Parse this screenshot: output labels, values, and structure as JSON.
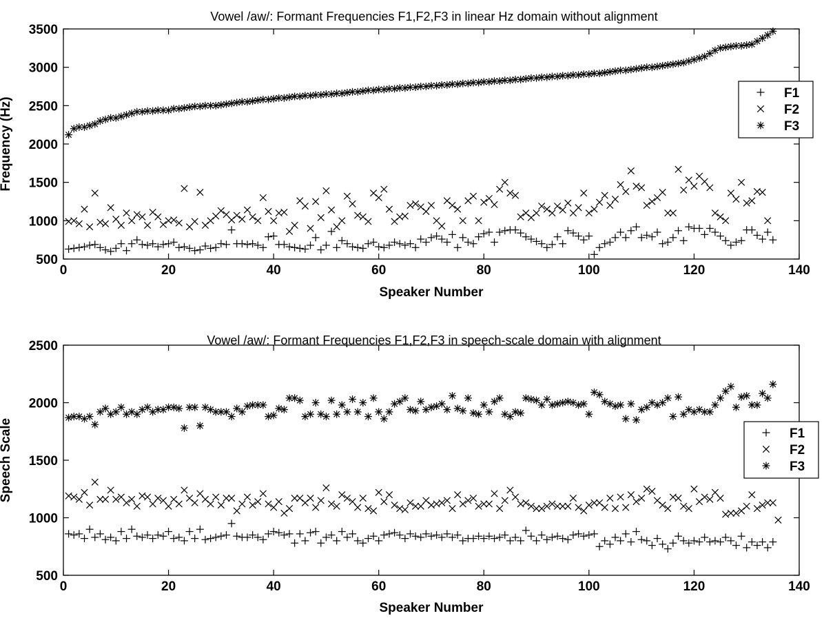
{
  "chart_data": [
    {
      "type": "scatter",
      "title": "Vowel /aw/: Formant Frequencies  F1,F2,F3 in linear Hz domain without alignment",
      "xlabel": "Speaker Number",
      "ylabel": "Frequency (Hz)",
      "xlim": [
        0,
        140
      ],
      "ylim": [
        500,
        3500
      ],
      "xticks": [
        0,
        20,
        40,
        60,
        80,
        100,
        120,
        140
      ],
      "yticks": [
        500,
        1000,
        1500,
        2000,
        2500,
        3000,
        3500
      ],
      "grid": false,
      "legend_position": "right",
      "series": [
        {
          "name": "F1",
          "marker": "plus",
          "values": [
            630,
            640,
            650,
            660,
            680,
            690,
            650,
            620,
            600,
            640,
            700,
            610,
            700,
            750,
            690,
            680,
            700,
            660,
            690,
            700,
            720,
            650,
            660,
            640,
            610,
            620,
            670,
            640,
            650,
            700,
            690,
            880,
            700,
            700,
            690,
            700,
            680,
            650,
            790,
            800,
            690,
            690,
            660,
            650,
            640,
            630,
            680,
            780,
            620,
            680,
            860,
            650,
            740,
            700,
            660,
            650,
            640,
            700,
            720,
            660,
            650,
            680,
            720,
            700,
            680,
            700,
            650,
            760,
            720,
            780,
            800,
            760,
            720,
            820,
            650,
            780,
            720,
            700,
            790,
            830,
            850,
            720,
            850,
            870,
            880,
            880,
            840,
            790,
            760,
            730,
            700,
            650,
            690,
            790,
            700,
            870,
            840,
            800,
            750,
            800,
            560,
            650,
            700,
            720,
            780,
            850,
            780,
            870,
            920,
            780,
            810,
            790,
            850,
            700,
            720,
            780,
            870,
            740,
            920,
            900,
            900,
            820,
            900,
            850,
            800,
            740,
            680,
            720,
            740,
            880,
            880,
            810,
            760,
            850,
            750
          ]
        },
        {
          "name": "F2",
          "marker": "x",
          "values": [
            990,
            1000,
            960,
            1150,
            920,
            1360,
            980,
            960,
            1170,
            1020,
            940,
            1100,
            1000,
            1080,
            1050,
            940,
            1110,
            1050,
            950,
            1000,
            1010,
            970,
            1420,
            920,
            990,
            1370,
            940,
            1000,
            1060,
            1130,
            1080,
            1010,
            1070,
            1020,
            1140,
            1050,
            1000,
            1300,
            1120,
            1000,
            1100,
            1110,
            860,
            940,
            1260,
            1190,
            900,
            1250,
            1040,
            1390,
            1140,
            920,
            1000,
            1320,
            1220,
            1070,
            1050,
            990,
            1360,
            1300,
            1410,
            1150,
            990,
            1050,
            1060,
            1200,
            1220,
            1180,
            1120,
            1200,
            1000,
            930,
            1260,
            1200,
            1150,
            1000,
            1260,
            1320,
            1000,
            1240,
            1290,
            1210,
            1410,
            1500,
            1360,
            1330,
            1050,
            1100,
            1040,
            1100,
            1190,
            1150,
            1100,
            1190,
            1140,
            1230,
            1100,
            1170,
            1360,
            1100,
            1150,
            1240,
            1330,
            1200,
            1280,
            1470,
            1380,
            1650,
            1450,
            1430,
            1200,
            1250,
            1300,
            1370,
            1100,
            1100,
            1670,
            1400,
            1530,
            1450,
            1580,
            1510,
            1430,
            1100,
            1050,
            1000,
            1360,
            1280,
            1500,
            1230,
            1260,
            1380,
            1370,
            1000
          ]
        },
        {
          "name": "F3",
          "marker": "star",
          "values": [
            2120,
            2200,
            2220,
            2220,
            2240,
            2260,
            2300,
            2320,
            2340,
            2340,
            2360,
            2380,
            2400,
            2420,
            2420,
            2430,
            2430,
            2440,
            2440,
            2440,
            2460,
            2460,
            2470,
            2480,
            2490,
            2490,
            2500,
            2500,
            2500,
            2510,
            2520,
            2530,
            2540,
            2550,
            2550,
            2560,
            2570,
            2580,
            2580,
            2590,
            2600,
            2600,
            2610,
            2620,
            2620,
            2630,
            2630,
            2640,
            2640,
            2650,
            2650,
            2660,
            2660,
            2670,
            2680,
            2680,
            2690,
            2700,
            2700,
            2710,
            2710,
            2720,
            2720,
            2730,
            2730,
            2740,
            2740,
            2750,
            2750,
            2760,
            2760,
            2770,
            2770,
            2780,
            2780,
            2790,
            2790,
            2800,
            2800,
            2810,
            2810,
            2820,
            2820,
            2830,
            2830,
            2840,
            2840,
            2850,
            2860,
            2860,
            2870,
            2870,
            2880,
            2880,
            2890,
            2890,
            2900,
            2900,
            2910,
            2910,
            2920,
            2920,
            2930,
            2940,
            2950,
            2960,
            2960,
            2970,
            2980,
            2990,
            3000,
            3000,
            3010,
            3020,
            3030,
            3040,
            3050,
            3060,
            3080,
            3100,
            3120,
            3140,
            3180,
            3220,
            3250,
            3260,
            3270,
            3280,
            3280,
            3290,
            3300,
            3340,
            3380,
            3420,
            3470
          ]
        }
      ]
    },
    {
      "type": "scatter",
      "title": "Vowel /aw/: Formant Frequencies F1,F2,F3 in speech-scale domain with alignment",
      "xlabel": "Speaker Number",
      "ylabel": "Speech Scale",
      "xlim": [
        0,
        140
      ],
      "ylim": [
        500,
        2500
      ],
      "xticks": [
        0,
        20,
        40,
        60,
        80,
        100,
        120,
        140
      ],
      "yticks": [
        500,
        1000,
        1500,
        2000,
        2500
      ],
      "grid": false,
      "legend_position": "right",
      "series": [
        {
          "name": "F1",
          "marker": "plus",
          "values": [
            860,
            850,
            860,
            820,
            900,
            830,
            860,
            810,
            830,
            800,
            880,
            820,
            900,
            840,
            830,
            850,
            820,
            850,
            840,
            880,
            820,
            830,
            800,
            880,
            820,
            900,
            810,
            820,
            830,
            840,
            850,
            950,
            840,
            830,
            830,
            850,
            830,
            810,
            860,
            880,
            870,
            850,
            860,
            780,
            860,
            800,
            870,
            880,
            780,
            830,
            850,
            800,
            880,
            830,
            860,
            800,
            780,
            820,
            840,
            800,
            850,
            860,
            870,
            850,
            820,
            860,
            840,
            830,
            860,
            840,
            850,
            830,
            860,
            830,
            850,
            800,
            820,
            820,
            840,
            820,
            840,
            820,
            830,
            850,
            800,
            830,
            800,
            890,
            840,
            800,
            850,
            810,
            830,
            840,
            820,
            810,
            850,
            860,
            840,
            850,
            860,
            750,
            800,
            770,
            830,
            800,
            860,
            790,
            880,
            810,
            800,
            760,
            820,
            770,
            730,
            780,
            840,
            800,
            780,
            800,
            790,
            830,
            790,
            800,
            790,
            830,
            800,
            760,
            840,
            740,
            790,
            760,
            790,
            740,
            790
          ]
        },
        {
          "name": "F2",
          "marker": "x",
          "values": [
            1190,
            1180,
            1160,
            1220,
            1110,
            1310,
            1160,
            1160,
            1240,
            1160,
            1180,
            1130,
            1160,
            1100,
            1190,
            1180,
            1120,
            1170,
            1150,
            1100,
            1160,
            1120,
            1240,
            1170,
            1130,
            1210,
            1160,
            1120,
            1180,
            1110,
            1170,
            1170,
            1060,
            1120,
            1180,
            1110,
            1140,
            1210,
            1120,
            1090,
            1140,
            1040,
            1080,
            1170,
            1170,
            1130,
            1170,
            1090,
            1150,
            1260,
            1120,
            1100,
            1200,
            1170,
            1140,
            1090,
            1170,
            1080,
            1060,
            1220,
            1140,
            1200,
            1110,
            1080,
            1070,
            1130,
            1100,
            1100,
            1150,
            1110,
            1120,
            1130,
            1150,
            1080,
            1200,
            1120,
            1150,
            1170,
            1100,
            1120,
            1120,
            1210,
            1080,
            1150,
            1240,
            1180,
            1120,
            1130,
            1100,
            1080,
            1080,
            1100,
            1120,
            1100,
            1100,
            1100,
            1170,
            1090,
            1060,
            1110,
            1130,
            1130,
            1090,
            1170,
            1080,
            1180,
            1090,
            1200,
            1140,
            1170,
            1250,
            1230,
            1150,
            1110,
            1080,
            1180,
            1170,
            1100,
            1080,
            1250,
            1140,
            1180,
            1160,
            1220,
            1170,
            1030,
            1040,
            1040,
            1060,
            1100,
            1200,
            1080,
            1110,
            1130,
            1130,
            980
          ]
        },
        {
          "name": "F3",
          "marker": "star",
          "values": [
            1870,
            1880,
            1880,
            1860,
            1880,
            1810,
            1920,
            1950,
            1900,
            1920,
            1960,
            1900,
            1920,
            1900,
            1940,
            1960,
            1920,
            1940,
            1940,
            1960,
            1960,
            1950,
            1780,
            1960,
            1960,
            1800,
            1960,
            1940,
            1920,
            1920,
            1920,
            1880,
            1950,
            1920,
            1970,
            1980,
            1980,
            1980,
            1880,
            1890,
            1950,
            1940,
            2040,
            2040,
            2020,
            1880,
            1900,
            2000,
            1900,
            1880,
            2020,
            1900,
            1980,
            1920,
            2030,
            1920,
            2000,
            1880,
            2040,
            1920,
            1860,
            1920,
            1990,
            2010,
            2040,
            1940,
            1930,
            2010,
            1940,
            1960,
            1970,
            1990,
            1940,
            2060,
            1950,
            1930,
            2040,
            1910,
            1900,
            1980,
            1920,
            2010,
            2040,
            1900,
            1880,
            1920,
            1910,
            2040,
            2030,
            2020,
            1980,
            2030,
            1980,
            1990,
            2000,
            2010,
            2000,
            1980,
            1990,
            1900,
            2090,
            2070,
            2010,
            1990,
            1970,
            1980,
            1860,
            1990,
            1850,
            1940,
            1960,
            2000,
            1980,
            2000,
            2040,
            1880,
            2050,
            1900,
            1940,
            1920,
            1940,
            1920,
            1920,
            1980,
            2040,
            2100,
            2140,
            1960,
            2050,
            2060,
            1980,
            1980,
            2080,
            2040,
            2160
          ]
        }
      ]
    }
  ]
}
